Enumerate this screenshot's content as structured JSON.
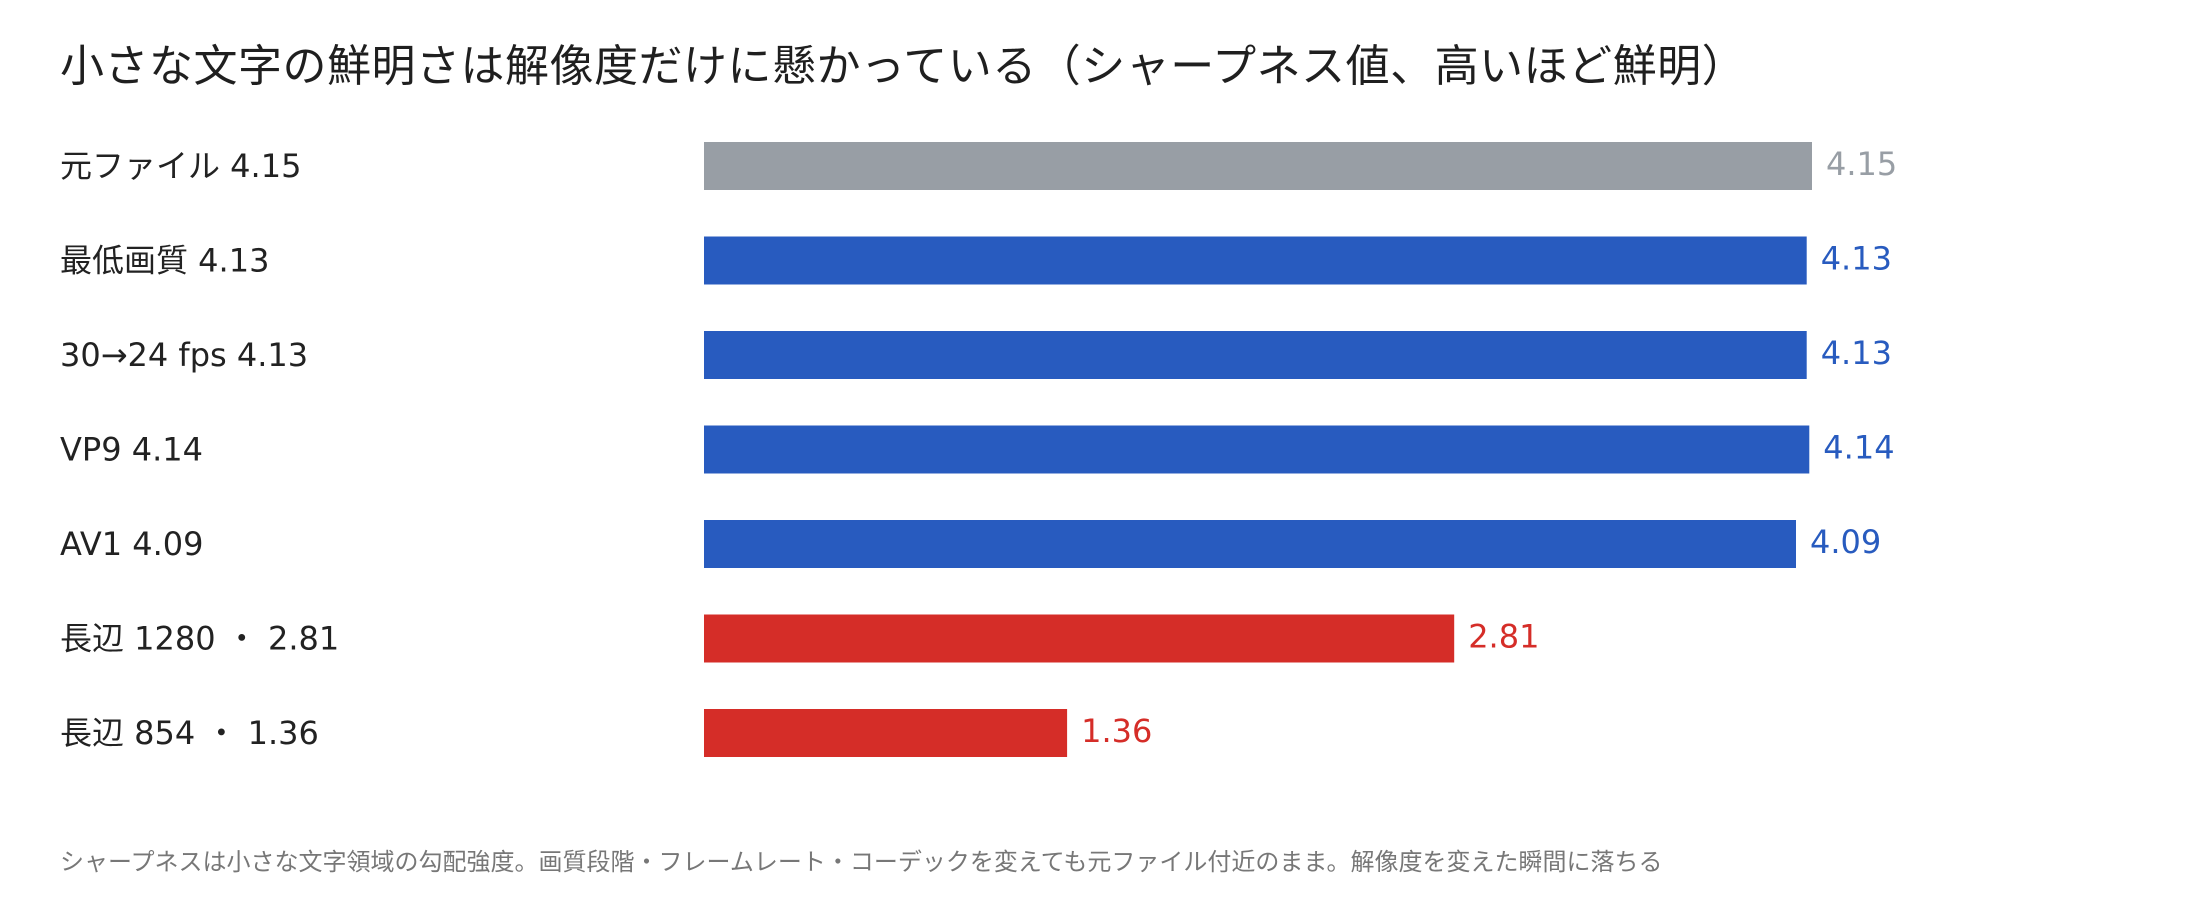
{
  "chart_data": {
    "type": "bar",
    "orientation": "horizontal",
    "title": "小さな文字の鮮明さは解像度だけに懸かっている（シャープネス値、高いほど鮮明）",
    "categories": [
      "元ファイル 4.15",
      "最低画質 4.13",
      "30→24 fps 4.13",
      "VP9 4.14",
      "AV1 4.09",
      "長辺 1280 ・ 2.81",
      "長辺 854 ・ 1.36"
    ],
    "values": [
      4.15,
      4.13,
      4.13,
      4.14,
      4.09,
      2.81,
      1.36
    ],
    "value_labels": [
      "4.15",
      "4.13",
      "4.13",
      "4.14",
      "4.09",
      "2.81",
      "1.36"
    ],
    "colors": [
      "#989ea5",
      "#285bbf",
      "#285bbf",
      "#285bbf",
      "#285bbf",
      "#d52d28",
      "#d52d28"
    ],
    "xlim": [
      0,
      4.15
    ],
    "grid": false,
    "legend": "none",
    "footnote": "シャープネスは小さな文字領域の勾配強度。画質段階・フレームレート・コーデックを変えても元ファイル付近のまま。解像度を変えた瞬間に落ちる"
  }
}
